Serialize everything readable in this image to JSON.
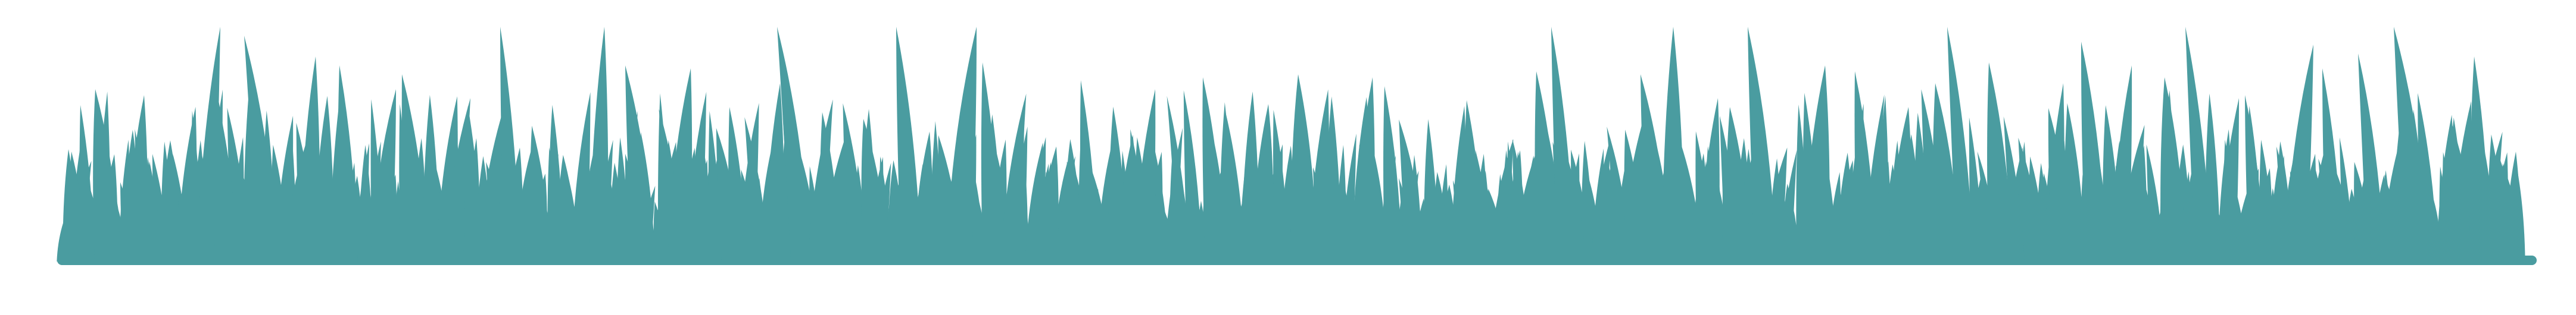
{
  "image": {
    "subject": "grass-border-silhouette",
    "colors": {
      "background": "#ffffff",
      "grass": "#4a9ca0"
    }
  }
}
